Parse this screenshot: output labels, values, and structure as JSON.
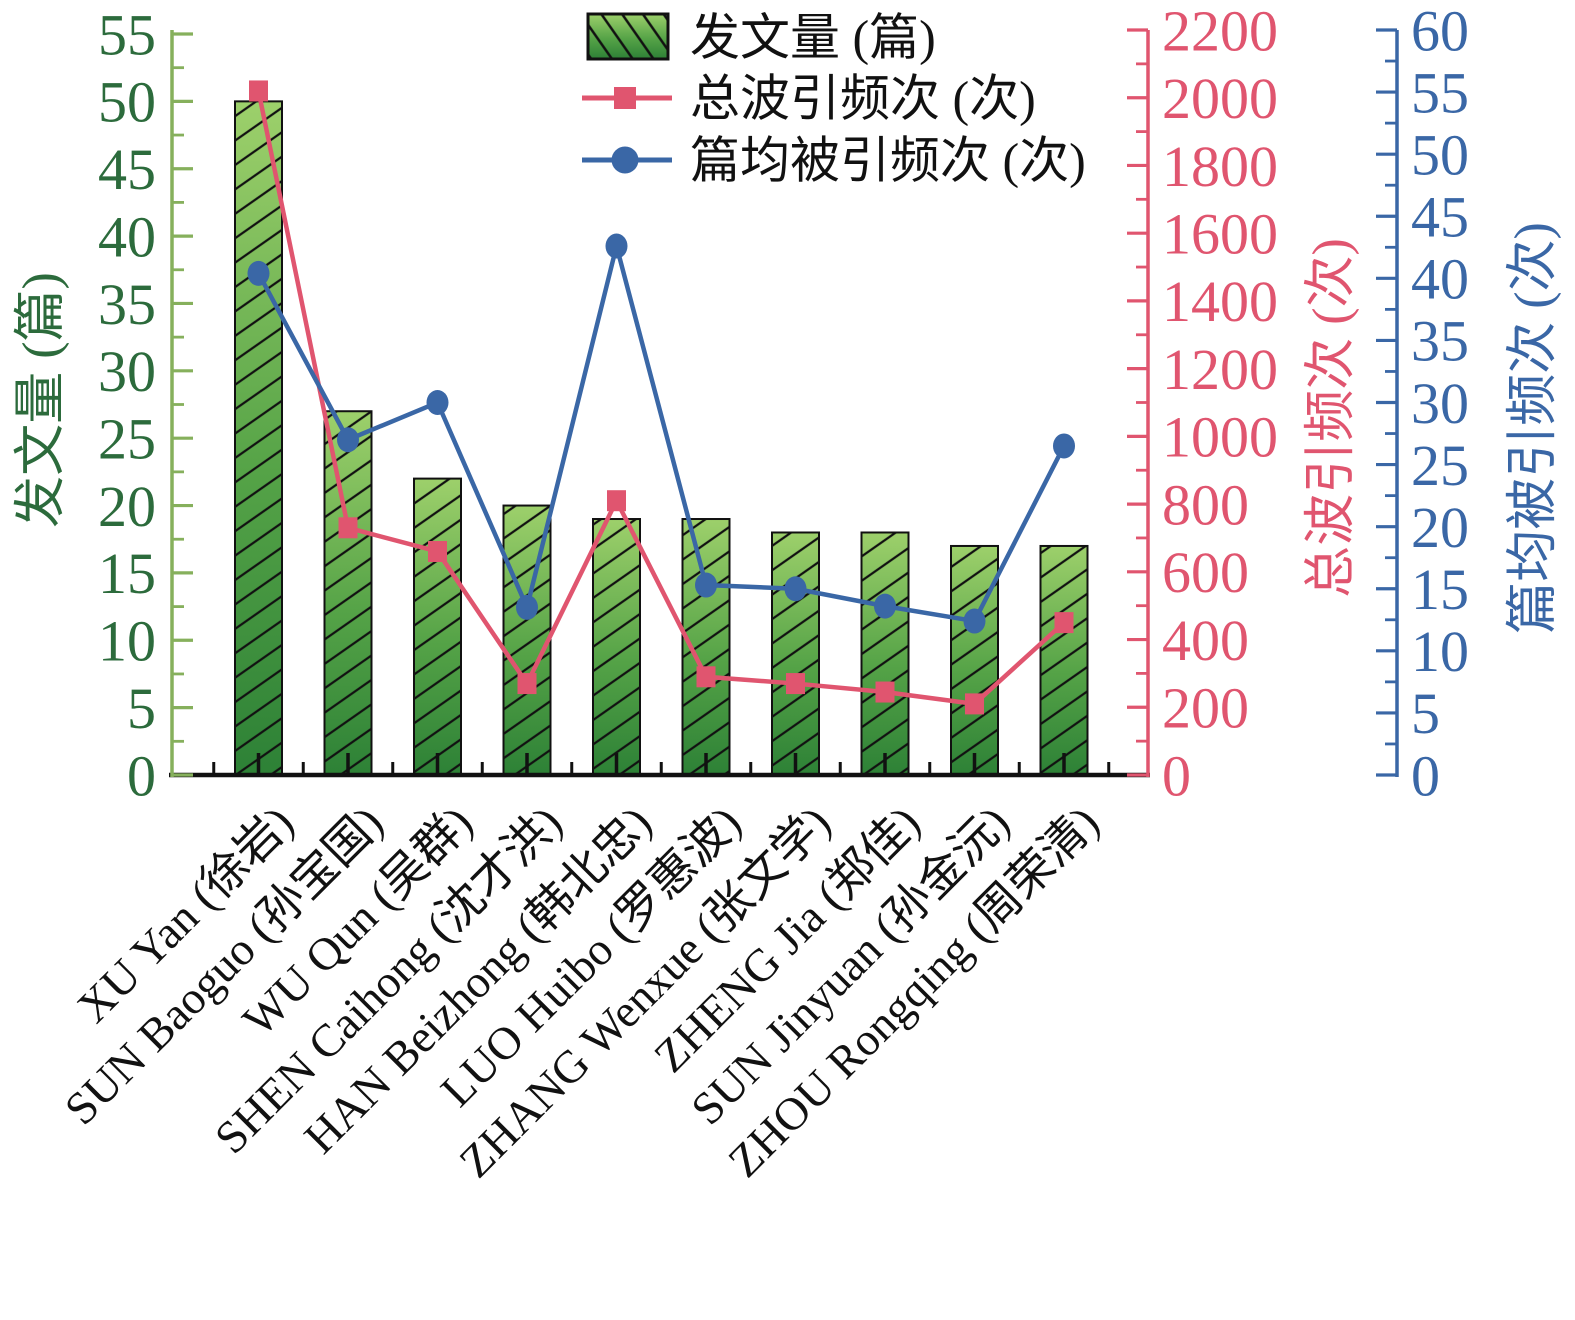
{
  "chart_data": {
    "type": "bar+line",
    "title": "",
    "background": "#ffffff",
    "grid": false,
    "categories": [
      "XU Yan (徐岩)",
      "SUN Baoguo (孙宝国)",
      "WU Qun (吴群)",
      "SHEN Caihong (沈才洪)",
      "HAN Beizhong (韩北忠)",
      "LUO Huibo (罗惠波)",
      "ZHANG Wenxue (张文学)",
      "ZHENG Jia (郑佳)",
      "SUN Jinyuan (孙金沅)",
      "ZHOU Rongqing (周荣清)"
    ],
    "series": [
      {
        "name": "发文量 (篇)",
        "type": "bar",
        "axis": "left",
        "values": [
          50,
          27,
          22,
          20,
          19,
          19,
          18,
          18,
          17,
          17
        ],
        "bar_fill_top": "#9dd06b",
        "bar_fill_mid": "#55a347",
        "bar_fill_bottom": "#2d8136",
        "bar_border": "#111111",
        "hatch": "diagonal-forward"
      },
      {
        "name": "总波引频次 (次)",
        "type": "line",
        "marker": "square",
        "axis": "right1",
        "color": "#e0556f",
        "values": [
          2020,
          730,
          660,
          270,
          810,
          290,
          270,
          245,
          210,
          450
        ]
      },
      {
        "name": "篇均被引频次 (次)",
        "type": "line",
        "marker": "circle",
        "axis": "right2",
        "color": "#3a67a6",
        "values": [
          40.4,
          27.0,
          30.0,
          13.5,
          42.6,
          15.3,
          15.0,
          13.6,
          12.4,
          26.5
        ]
      }
    ],
    "axes": {
      "left": {
        "label": "发文量 (篇)",
        "min": 0,
        "max": 55,
        "tick_step": 5,
        "minor_step": 2.5,
        "text_color": "#2c6b3c",
        "line_color": "#86b05c",
        "tick_labels": [
          "0",
          "5",
          "10",
          "15",
          "20",
          "25",
          "30",
          "35",
          "40",
          "45",
          "50",
          "55"
        ]
      },
      "right1": {
        "label": "总波引频次 (次)",
        "min": 0,
        "max": 2200,
        "tick_step": 200,
        "minor_step": 100,
        "text_color": "#e0556f",
        "line_color": "#e0556f",
        "tick_labels": [
          "0",
          "200",
          "400",
          "600",
          "800",
          "1000",
          "1200",
          "1400",
          "1600",
          "1800",
          "2000",
          "2200"
        ]
      },
      "right2": {
        "label": "篇均被引频次 (次)",
        "min": 0,
        "max": 60,
        "tick_step": 5,
        "minor_step": 2.5,
        "text_color": "#3a67a6",
        "line_color": "#3a67a6",
        "tick_labels": [
          "0",
          "5",
          "10",
          "15",
          "20",
          "25",
          "30",
          "35",
          "40",
          "45",
          "50",
          "55",
          "60"
        ]
      },
      "x": {
        "line_color": "#111111"
      }
    },
    "legend": {
      "position": "top-center",
      "entries": [
        {
          "label": "发文量 (篇)",
          "swatch": "hatched-bar"
        },
        {
          "label": "总波引频次 (次)",
          "swatch": "line-square",
          "color": "#e0556f"
        },
        {
          "label": "篇均被引频次 (次)",
          "swatch": "line-circle",
          "color": "#3a67a6"
        }
      ],
      "text_color": "#111111"
    }
  }
}
